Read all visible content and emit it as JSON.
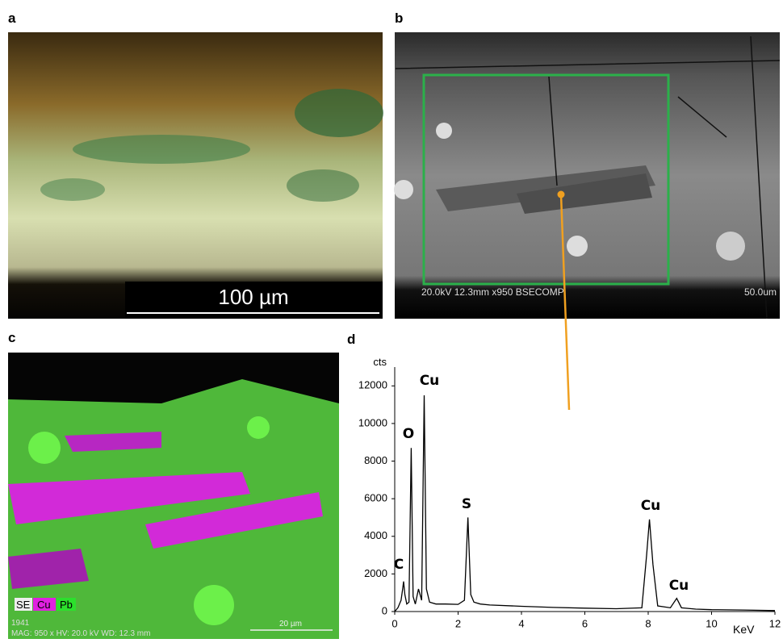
{
  "panels": {
    "a": {
      "label": "a",
      "scale_bar": "100 µm"
    },
    "b": {
      "label": "b",
      "info": "20.0kV 12.3mm x950 BSECOMP",
      "scale_bar": "50.0um"
    },
    "c": {
      "label": "c",
      "legend": [
        "SE",
        "Cu",
        "Pb"
      ],
      "id": "1941",
      "info": "MAG: 950 x  HV: 20.0 kV  WD: 12.3 mm",
      "scale_bar": "20 µm"
    },
    "d": {
      "label": "d"
    }
  },
  "chart_data": {
    "type": "line",
    "color": "#000000",
    "x_label": "KeV",
    "y_label": "cts",
    "x": [
      0,
      0.1,
      0.2,
      0.25,
      0.28,
      0.32,
      0.38,
      0.45,
      0.52,
      0.58,
      0.65,
      0.75,
      0.85,
      0.93,
      1.0,
      1.1,
      1.3,
      1.6,
      2.0,
      2.2,
      2.31,
      2.4,
      2.5,
      2.7,
      3.0,
      4.0,
      5.0,
      6.0,
      7.0,
      7.8,
      7.95,
      8.04,
      8.15,
      8.3,
      8.7,
      8.9,
      9.05,
      9.5,
      10,
      11,
      12
    ],
    "values": [
      0,
      200,
      600,
      1200,
      1600,
      900,
      400,
      500,
      8700,
      800,
      400,
      1200,
      600,
      11500,
      1200,
      500,
      400,
      400,
      380,
      600,
      5000,
      900,
      500,
      400,
      350,
      280,
      220,
      180,
      150,
      200,
      3000,
      4900,
      2500,
      300,
      200,
      700,
      200,
      130,
      100,
      80,
      50
    ],
    "annotations": [
      "C",
      "O",
      "Cu",
      "S",
      "Cu",
      "Cu"
    ],
    "xlim": [
      0,
      12
    ],
    "ylim": [
      0,
      13000
    ],
    "xticks": [
      0,
      2,
      4,
      6,
      8,
      10,
      12
    ],
    "yticks": [
      0,
      2000,
      4000,
      6000,
      8000,
      10000,
      12000
    ]
  }
}
